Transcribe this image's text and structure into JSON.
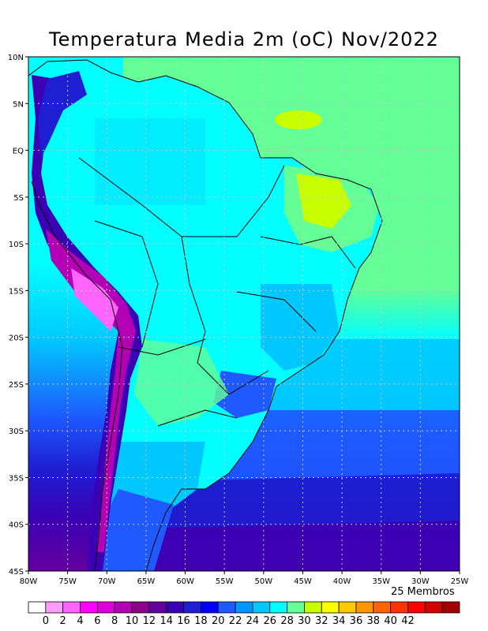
{
  "title": "Temperatura Media 2m (oC) Nov/2022",
  "members_label": "25 Membros",
  "lat_ticks": [
    "10N",
    "5N",
    "EQ",
    "5S",
    "10S",
    "15S",
    "20S",
    "25S",
    "30S",
    "35S",
    "40S",
    "45S"
  ],
  "lon_ticks": [
    "80W",
    "75W",
    "70W",
    "65W",
    "60W",
    "55W",
    "50W",
    "45W",
    "40W",
    "35W",
    "30W",
    "25W"
  ],
  "colorbar": {
    "labels": [
      "0",
      "2",
      "4",
      "6",
      "8",
      "10",
      "12",
      "14",
      "16",
      "18",
      "20",
      "22",
      "24",
      "26",
      "28",
      "30",
      "32",
      "34",
      "36",
      "38",
      "40",
      "42"
    ],
    "colors": [
      "#ffffff",
      "#ff9cff",
      "#ff64ff",
      "#ff00ff",
      "#dc00dc",
      "#b400b4",
      "#8c008c",
      "#6400a0",
      "#3c00b4",
      "#1e1ed2",
      "#0000ff",
      "#1e5aff",
      "#0096ff",
      "#00c8ff",
      "#00ffff",
      "#64ff96",
      "#c8ff00",
      "#ffff00",
      "#ffc800",
      "#ff9600",
      "#ff6400",
      "#ff3200",
      "#ff0000",
      "#d20000",
      "#a00000"
    ]
  }
}
